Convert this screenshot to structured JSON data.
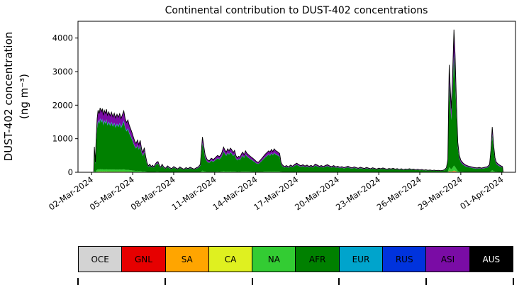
{
  "title": "Continental contribution to DUST-402 concentrations",
  "y_axis": {
    "label_line1": "DUST-402 concentration",
    "label_line2": "(ng m⁻³)"
  },
  "chart_data": {
    "type": "area",
    "stacked": true,
    "title": "Continental contribution to DUST-402 concentrations",
    "ylabel": "DUST-402 concentration (ng m⁻³)",
    "x_unit": "day (1 = 01-Mar-2024, 32 = 01-Apr-2024)",
    "xlim": [
      1,
      33
    ],
    "ylim": [
      0,
      4500
    ],
    "y_ticks": [
      0,
      1000,
      2000,
      3000,
      4000
    ],
    "x_ticks": {
      "positions": [
        2,
        5,
        8,
        11,
        14,
        17,
        20,
        23,
        26,
        29,
        32
      ],
      "labels": [
        "02-Mar-2024",
        "05-Mar-2024",
        "08-Mar-2024",
        "11-Mar-2024",
        "14-Mar-2024",
        "17-Mar-2024",
        "20-Mar-2024",
        "23-Mar-2024",
        "26-Mar-2024",
        "29-Mar-2024",
        "01-Apr-2024"
      ]
    },
    "legend_position": "bottom",
    "series": [
      {
        "name": "OCE",
        "color": "#d3d3d3",
        "text_color": "#000000",
        "fraction": 0.004
      },
      {
        "name": "GNL",
        "color": "#e60000",
        "text_color": "#000000",
        "fraction": 0.003
      },
      {
        "name": "SA",
        "color": "#ffa500",
        "text_color": "#000000",
        "fraction": 0.002
      },
      {
        "name": "CA",
        "color": "#dff020",
        "text_color": "#000000",
        "fraction": 0.003
      },
      {
        "name": "NA",
        "color": "#33cc33",
        "text_color": "#000000",
        "fraction": 0.035
      },
      {
        "name": "AFR",
        "color": "#008000",
        "text_color": "#000000",
        "fraction": 0.775
      },
      {
        "name": "EUR",
        "color": "#00a4cc",
        "text_color": "#000000",
        "fraction": 0.012
      },
      {
        "name": "RUS",
        "color": "#0033dd",
        "text_color": "#000000",
        "fraction": 0.008
      },
      {
        "name": "ASI",
        "color": "#7a0ca5",
        "text_color": "#000000",
        "fraction": 0.145
      },
      {
        "name": "AUS",
        "color": "#000000",
        "text_color": "#ffffff",
        "fraction": 0.013
      }
    ],
    "total_points": [
      [
        2.15,
        20
      ],
      [
        2.2,
        760
      ],
      [
        2.27,
        300
      ],
      [
        2.33,
        1000
      ],
      [
        2.4,
        1600
      ],
      [
        2.47,
        1850
      ],
      [
        2.55,
        1750
      ],
      [
        2.62,
        1920
      ],
      [
        2.7,
        1800
      ],
      [
        2.78,
        1900
      ],
      [
        2.85,
        1700
      ],
      [
        2.92,
        1850
      ],
      [
        3.0,
        1760
      ],
      [
        3.08,
        1880
      ],
      [
        3.15,
        1700
      ],
      [
        3.25,
        1800
      ],
      [
        3.35,
        1680
      ],
      [
        3.45,
        1790
      ],
      [
        3.55,
        1650
      ],
      [
        3.65,
        1760
      ],
      [
        3.75,
        1620
      ],
      [
        3.85,
        1730
      ],
      [
        3.95,
        1640
      ],
      [
        4.05,
        1750
      ],
      [
        4.15,
        1600
      ],
      [
        4.25,
        1720
      ],
      [
        4.35,
        1830
      ],
      [
        4.45,
        1600
      ],
      [
        4.55,
        1480
      ],
      [
        4.65,
        1560
      ],
      [
        4.75,
        1400
      ],
      [
        4.85,
        1300
      ],
      [
        4.95,
        1180
      ],
      [
        5.05,
        1050
      ],
      [
        5.15,
        930
      ],
      [
        5.25,
        860
      ],
      [
        5.35,
        960
      ],
      [
        5.45,
        820
      ],
      [
        5.55,
        950
      ],
      [
        5.65,
        700
      ],
      [
        5.75,
        590
      ],
      [
        5.85,
        730
      ],
      [
        5.95,
        480
      ],
      [
        6.05,
        280
      ],
      [
        6.15,
        190
      ],
      [
        6.25,
        240
      ],
      [
        6.35,
        170
      ],
      [
        6.45,
        210
      ],
      [
        6.55,
        160
      ],
      [
        6.65,
        240
      ],
      [
        6.75,
        300
      ],
      [
        6.85,
        320
      ],
      [
        6.95,
        210
      ],
      [
        7.05,
        150
      ],
      [
        7.15,
        240
      ],
      [
        7.25,
        170
      ],
      [
        7.4,
        120
      ],
      [
        7.55,
        190
      ],
      [
        7.7,
        140
      ],
      [
        7.85,
        110
      ],
      [
        8.0,
        170
      ],
      [
        8.15,
        130
      ],
      [
        8.3,
        100
      ],
      [
        8.45,
        160
      ],
      [
        8.6,
        120
      ],
      [
        8.75,
        90
      ],
      [
        8.9,
        140
      ],
      [
        9.05,
        110
      ],
      [
        9.2,
        150
      ],
      [
        9.35,
        120
      ],
      [
        9.5,
        95
      ],
      [
        9.65,
        135
      ],
      [
        9.8,
        160
      ],
      [
        9.95,
        240
      ],
      [
        10.1,
        1050
      ],
      [
        10.2,
        780
      ],
      [
        10.3,
        520
      ],
      [
        10.45,
        380
      ],
      [
        10.6,
        340
      ],
      [
        10.75,
        420
      ],
      [
        10.9,
        380
      ],
      [
        11.05,
        440
      ],
      [
        11.2,
        500
      ],
      [
        11.35,
        470
      ],
      [
        11.5,
        560
      ],
      [
        11.65,
        750
      ],
      [
        11.75,
        660
      ],
      [
        11.85,
        600
      ],
      [
        11.95,
        700
      ],
      [
        12.05,
        640
      ],
      [
        12.15,
        720
      ],
      [
        12.25,
        670
      ],
      [
        12.35,
        590
      ],
      [
        12.45,
        650
      ],
      [
        12.55,
        500
      ],
      [
        12.65,
        430
      ],
      [
        12.75,
        480
      ],
      [
        12.85,
        450
      ],
      [
        12.95,
        540
      ],
      [
        13.05,
        600
      ],
      [
        13.15,
        520
      ],
      [
        13.25,
        640
      ],
      [
        13.35,
        570
      ],
      [
        13.45,
        530
      ],
      [
        13.6,
        480
      ],
      [
        13.75,
        430
      ],
      [
        13.9,
        380
      ],
      [
        14.05,
        320
      ],
      [
        14.2,
        300
      ],
      [
        14.35,
        370
      ],
      [
        14.5,
        440
      ],
      [
        14.65,
        520
      ],
      [
        14.8,
        580
      ],
      [
        14.95,
        640
      ],
      [
        15.05,
        600
      ],
      [
        15.15,
        680
      ],
      [
        15.25,
        620
      ],
      [
        15.35,
        700
      ],
      [
        15.45,
        650
      ],
      [
        15.6,
        610
      ],
      [
        15.75,
        560
      ],
      [
        15.85,
        300
      ],
      [
        15.95,
        220
      ],
      [
        16.1,
        170
      ],
      [
        16.25,
        200
      ],
      [
        16.4,
        160
      ],
      [
        16.55,
        215
      ],
      [
        16.7,
        180
      ],
      [
        16.85,
        235
      ],
      [
        17.0,
        270
      ],
      [
        17.15,
        230
      ],
      [
        17.3,
        195
      ],
      [
        17.45,
        225
      ],
      [
        17.6,
        185
      ],
      [
        17.75,
        215
      ],
      [
        17.9,
        175
      ],
      [
        18.05,
        205
      ],
      [
        18.2,
        170
      ],
      [
        18.35,
        245
      ],
      [
        18.5,
        215
      ],
      [
        18.65,
        180
      ],
      [
        18.8,
        200
      ],
      [
        18.95,
        170
      ],
      [
        19.1,
        205
      ],
      [
        19.25,
        225
      ],
      [
        19.4,
        190
      ],
      [
        19.55,
        170
      ],
      [
        19.7,
        200
      ],
      [
        19.85,
        160
      ],
      [
        20.0,
        180
      ],
      [
        20.15,
        150
      ],
      [
        20.3,
        170
      ],
      [
        20.45,
        140
      ],
      [
        20.6,
        160
      ],
      [
        20.75,
        180
      ],
      [
        20.9,
        150
      ],
      [
        21.05,
        130
      ],
      [
        21.2,
        160
      ],
      [
        21.35,
        140
      ],
      [
        21.5,
        120
      ],
      [
        21.65,
        150
      ],
      [
        21.8,
        130
      ],
      [
        21.95,
        115
      ],
      [
        22.1,
        145
      ],
      [
        22.25,
        125
      ],
      [
        22.4,
        105
      ],
      [
        22.55,
        135
      ],
      [
        22.7,
        115
      ],
      [
        22.85,
        95
      ],
      [
        23.0,
        125
      ],
      [
        23.15,
        105
      ],
      [
        23.3,
        130
      ],
      [
        23.45,
        110
      ],
      [
        23.6,
        90
      ],
      [
        23.75,
        115
      ],
      [
        23.9,
        100
      ],
      [
        24.05,
        120
      ],
      [
        24.2,
        95
      ],
      [
        24.35,
        110
      ],
      [
        24.5,
        85
      ],
      [
        24.65,
        105
      ],
      [
        24.8,
        80
      ],
      [
        24.95,
        100
      ],
      [
        25.1,
        90
      ],
      [
        25.25,
        105
      ],
      [
        25.4,
        85
      ],
      [
        25.55,
        95
      ],
      [
        25.7,
        75
      ],
      [
        25.85,
        90
      ],
      [
        26.0,
        70
      ],
      [
        26.15,
        85
      ],
      [
        26.3,
        65
      ],
      [
        26.45,
        75
      ],
      [
        26.6,
        60
      ],
      [
        26.75,
        70
      ],
      [
        26.9,
        55
      ],
      [
        27.05,
        65
      ],
      [
        27.2,
        50
      ],
      [
        27.35,
        60
      ],
      [
        27.5,
        48
      ],
      [
        27.65,
        55
      ],
      [
        27.8,
        75
      ],
      [
        27.95,
        140
      ],
      [
        28.05,
        380
      ],
      [
        28.15,
        3200
      ],
      [
        28.22,
        2600
      ],
      [
        28.3,
        1900
      ],
      [
        28.4,
        2900
      ],
      [
        28.5,
        4250
      ],
      [
        28.58,
        3500
      ],
      [
        28.68,
        2100
      ],
      [
        28.78,
        900
      ],
      [
        28.88,
        520
      ],
      [
        29.0,
        360
      ],
      [
        29.15,
        280
      ],
      [
        29.3,
        230
      ],
      [
        29.45,
        200
      ],
      [
        29.6,
        180
      ],
      [
        29.75,
        165
      ],
      [
        29.9,
        150
      ],
      [
        30.05,
        140
      ],
      [
        30.2,
        130
      ],
      [
        30.35,
        145
      ],
      [
        30.5,
        125
      ],
      [
        30.65,
        140
      ],
      [
        30.8,
        155
      ],
      [
        30.95,
        170
      ],
      [
        31.1,
        230
      ],
      [
        31.2,
        650
      ],
      [
        31.3,
        1350
      ],
      [
        31.4,
        820
      ],
      [
        31.5,
        430
      ],
      [
        31.6,
        300
      ],
      [
        31.75,
        240
      ],
      [
        31.9,
        200
      ],
      [
        32.05,
        170
      ],
      [
        32.1,
        0
      ]
    ]
  }
}
